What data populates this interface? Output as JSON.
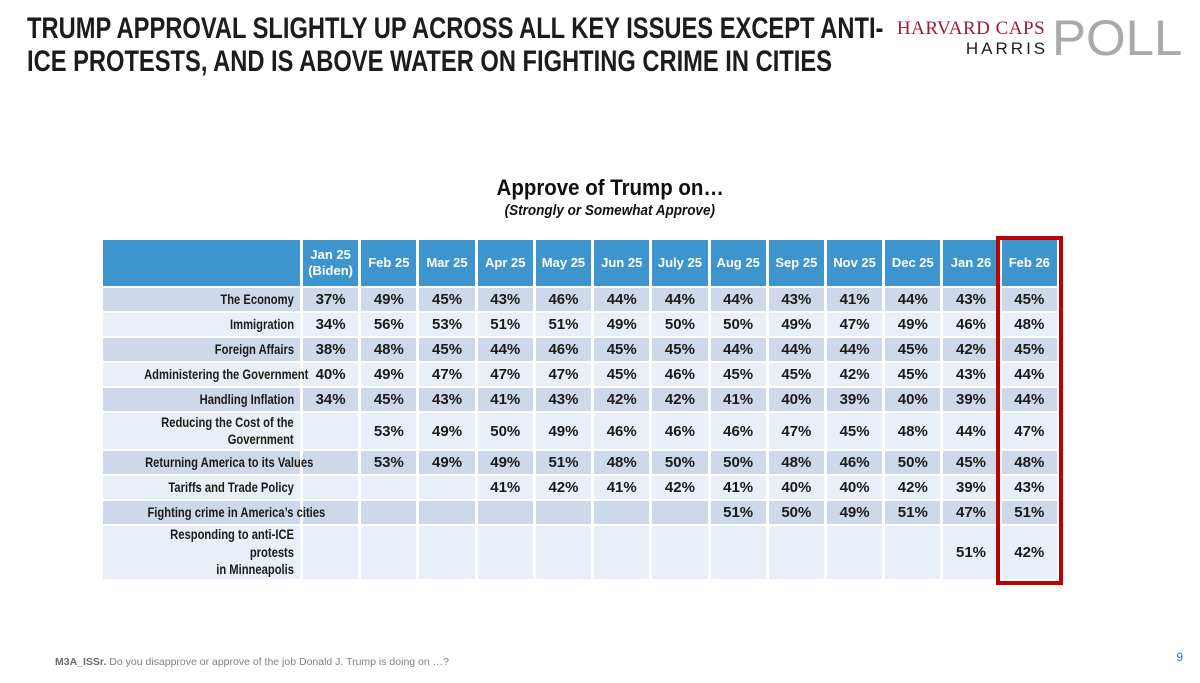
{
  "slide": {
    "title_lines": [
      "TRUMP APPROVAL SLIGHTLY UP ACROSS ALL KEY ISSUES EXCEPT ANTI-",
      "ICE PROTESTS, AND IS ABOVE WATER ON FIGHTING CRIME IN CITIES"
    ],
    "footnote": {
      "code": "M3A_ISSr.",
      "text": "Do you disapprove or approve of the job Donald J. Trump is doing on …?"
    },
    "page_number": "9"
  },
  "logo": {
    "line1": "HARVARD CAPS",
    "line2": "HARRIS",
    "word": "POLL",
    "crimson": "#9E1B30",
    "gray": "#A9A9A9"
  },
  "chart_data": {
    "type": "table",
    "title": "Approve of Trump on…",
    "subtitle": "(Strongly or Somewhat Approve)",
    "columns": [
      "Jan 25 (Biden)",
      "Feb 25",
      "Mar 25",
      "Apr 25",
      "May 25",
      "Jun 25",
      "July 25",
      "Aug 25",
      "Sep 25",
      "Nov 25",
      "Dec 25",
      "Jan 26",
      "Feb 26"
    ],
    "highlight_column": "Feb 26",
    "rows": [
      {
        "label": "The Economy",
        "values": [
          "37%",
          "49%",
          "45%",
          "43%",
          "46%",
          "44%",
          "44%",
          "44%",
          "43%",
          "41%",
          "44%",
          "43%",
          "45%"
        ]
      },
      {
        "label": "Immigration",
        "values": [
          "34%",
          "56%",
          "53%",
          "51%",
          "51%",
          "49%",
          "50%",
          "50%",
          "49%",
          "47%",
          "49%",
          "46%",
          "48%"
        ]
      },
      {
        "label": "Foreign Affairs",
        "values": [
          "38%",
          "48%",
          "45%",
          "44%",
          "46%",
          "45%",
          "45%",
          "44%",
          "44%",
          "44%",
          "45%",
          "42%",
          "45%"
        ]
      },
      {
        "label": "Administering the Government",
        "values": [
          "40%",
          "49%",
          "47%",
          "47%",
          "47%",
          "45%",
          "46%",
          "45%",
          "45%",
          "42%",
          "45%",
          "43%",
          "44%"
        ]
      },
      {
        "label": "Handling Inflation",
        "values": [
          "34%",
          "45%",
          "43%",
          "41%",
          "43%",
          "42%",
          "42%",
          "41%",
          "40%",
          "39%",
          "40%",
          "39%",
          "44%"
        ]
      },
      {
        "label": "Reducing the Cost of the\nGovernment",
        "values": [
          "",
          "53%",
          "49%",
          "50%",
          "49%",
          "46%",
          "46%",
          "46%",
          "47%",
          "45%",
          "48%",
          "44%",
          "47%"
        ]
      },
      {
        "label": "Returning America to its Values",
        "values": [
          "",
          "53%",
          "49%",
          "49%",
          "51%",
          "48%",
          "50%",
          "50%",
          "48%",
          "46%",
          "50%",
          "45%",
          "48%"
        ]
      },
      {
        "label": "Tariffs and Trade Policy",
        "values": [
          "",
          "",
          "",
          "41%",
          "42%",
          "41%",
          "42%",
          "41%",
          "40%",
          "40%",
          "42%",
          "39%",
          "43%"
        ]
      },
      {
        "label": "Fighting crime in America’s cities",
        "values": [
          "",
          "",
          "",
          "",
          "",
          "",
          "",
          "51%",
          "50%",
          "49%",
          "51%",
          "47%",
          "51%"
        ]
      },
      {
        "label": "Responding to anti-ICE protests\nin Minneapolis",
        "values": [
          "",
          "",
          "",
          "",
          "",
          "",
          "",
          "",
          "",
          "",
          "",
          "51%",
          "42%"
        ]
      }
    ],
    "colors": {
      "header_bg": "#3E95CE",
      "row_dark": "#CDD9EA",
      "row_light": "#E9EFF8",
      "highlight_border": "#C00000",
      "header_text": "#FFFFFF",
      "cell_text": "#1A1A1A"
    },
    "layout": {
      "legend": "none",
      "grid": "white cell separators",
      "highlight": "red box around Feb 26 column"
    }
  }
}
